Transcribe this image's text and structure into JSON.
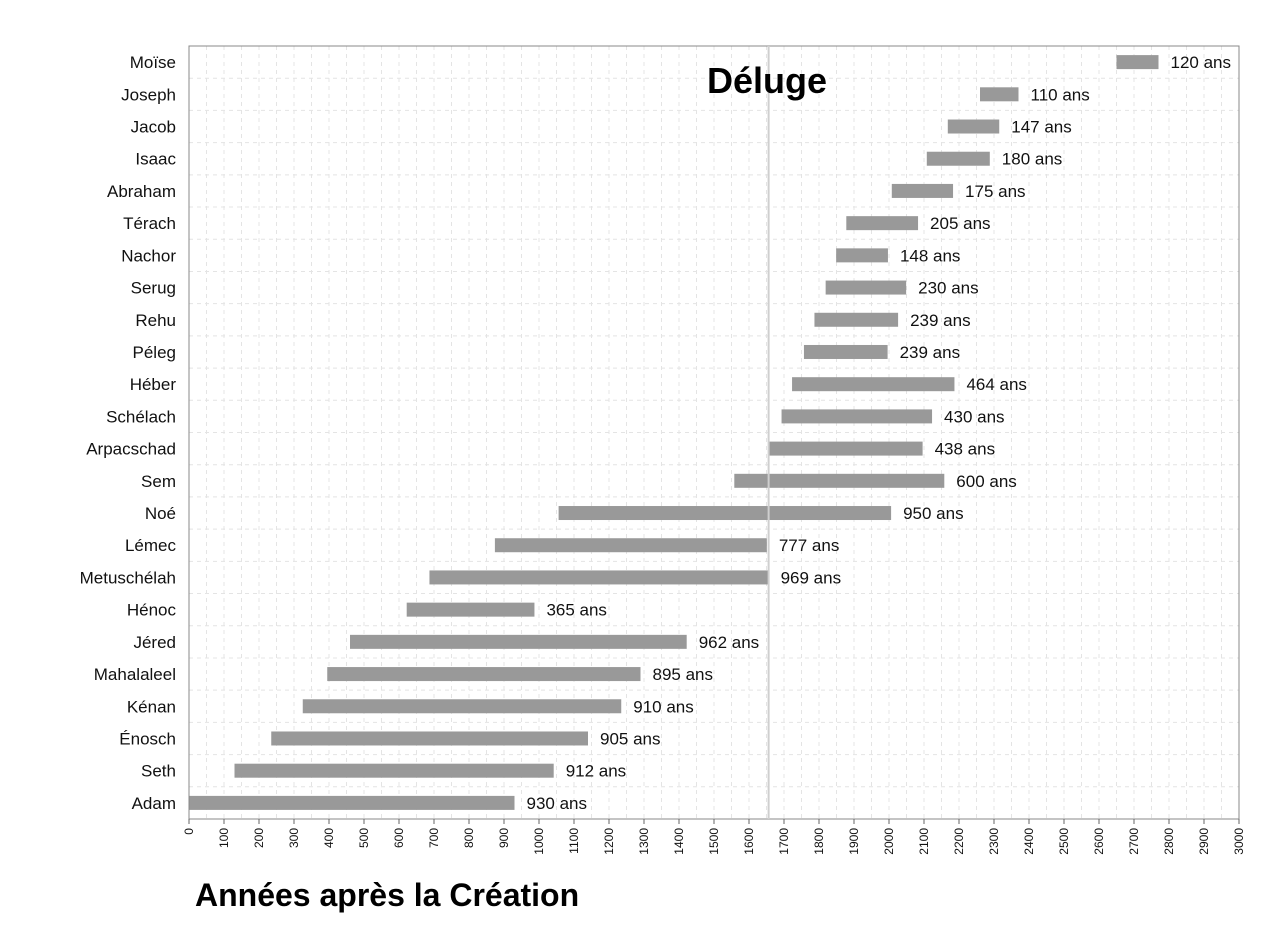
{
  "chart_data": {
    "type": "bar",
    "orientation": "horizontal",
    "xlabel": "Années après la Création",
    "xlim": [
      0,
      3000
    ],
    "xticks": [
      0,
      100,
      200,
      300,
      400,
      500,
      600,
      700,
      800,
      900,
      1000,
      1100,
      1200,
      1300,
      1400,
      1500,
      1600,
      1700,
      1800,
      1900,
      2000,
      2100,
      2200,
      2300,
      2400,
      2500,
      2600,
      2700,
      2800,
      2900,
      3000
    ],
    "grid": true,
    "bar_color": "#999999",
    "annotation": {
      "text": "Déluge",
      "x": 1656
    },
    "series": [
      {
        "name": "Moïse",
        "start": 2650,
        "end": 2770,
        "label": "120 ans"
      },
      {
        "name": "Joseph",
        "start": 2260,
        "end": 2370,
        "label": "110 ans"
      },
      {
        "name": "Jacob",
        "start": 2168,
        "end": 2315,
        "label": "147 ans"
      },
      {
        "name": "Isaac",
        "start": 2108,
        "end": 2288,
        "label": "180 ans"
      },
      {
        "name": "Abraham",
        "start": 2008,
        "end": 2183,
        "label": "175 ans"
      },
      {
        "name": "Térach",
        "start": 1878,
        "end": 2083,
        "label": "205 ans"
      },
      {
        "name": "Nachor",
        "start": 1849,
        "end": 1997,
        "label": "148 ans"
      },
      {
        "name": "Serug",
        "start": 1819,
        "end": 2049,
        "label": "230 ans"
      },
      {
        "name": "Rehu",
        "start": 1787,
        "end": 2026,
        "label": "239 ans"
      },
      {
        "name": "Péleg",
        "start": 1757,
        "end": 1996,
        "label": "239 ans"
      },
      {
        "name": "Héber",
        "start": 1723,
        "end": 2187,
        "label": "464 ans"
      },
      {
        "name": "Schélach",
        "start": 1693,
        "end": 2123,
        "label": "430 ans"
      },
      {
        "name": "Arpacschad",
        "start": 1658,
        "end": 2096,
        "label": "438 ans"
      },
      {
        "name": "Sem",
        "start": 1558,
        "end": 2158,
        "label": "600 ans"
      },
      {
        "name": "Noé",
        "start": 1056,
        "end": 2006,
        "label": "950 ans"
      },
      {
        "name": "Lémec",
        "start": 874,
        "end": 1651,
        "label": "777 ans"
      },
      {
        "name": "Metuschélah",
        "start": 687,
        "end": 1656,
        "label": "969 ans"
      },
      {
        "name": "Hénoc",
        "start": 622,
        "end": 987,
        "label": "365 ans"
      },
      {
        "name": "Jéred",
        "start": 460,
        "end": 1422,
        "label": "962 ans"
      },
      {
        "name": "Mahalaleel",
        "start": 395,
        "end": 1290,
        "label": "895 ans"
      },
      {
        "name": "Kénan",
        "start": 325,
        "end": 1235,
        "label": "910 ans"
      },
      {
        "name": "Énosch",
        "start": 235,
        "end": 1140,
        "label": "905 ans"
      },
      {
        "name": "Seth",
        "start": 130,
        "end": 1042,
        "label": "912 ans"
      },
      {
        "name": "Adam",
        "start": 0,
        "end": 930,
        "label": "930 ans"
      }
    ]
  }
}
